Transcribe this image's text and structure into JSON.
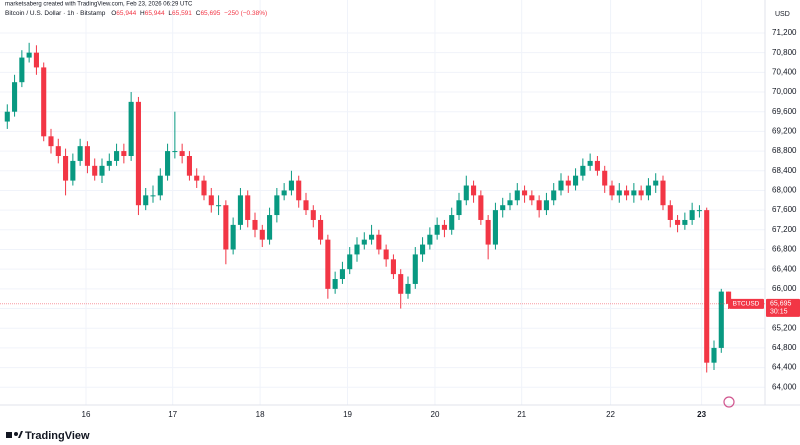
{
  "header": {
    "credit": "marketsaberg created with TradingView.com, Feb 23, 2026 06:29 UTC",
    "symbol": "Bitcoin / U.S. Dollar · 1h · Bitstamp",
    "open_label": "O",
    "open": "65,944",
    "high_label": "H",
    "high": "65,944",
    "low_label": "L",
    "low": "65,591",
    "close_label": "C",
    "close": "65,695",
    "change": "−250 (−0.38%)"
  },
  "logo": "TradingView",
  "chart_data": {
    "type": "candlestick",
    "currency": "USD",
    "up_color": "#089981",
    "down_color": "#f23645",
    "grid": true,
    "xlim": [
      -1,
      104
    ],
    "xticks": [
      {
        "value": 10.8,
        "label": "16"
      },
      {
        "value": 22.7,
        "label": "17"
      },
      {
        "value": 34.7,
        "label": "18"
      },
      {
        "value": 46.7,
        "label": "19"
      },
      {
        "value": 58.7,
        "label": "20"
      },
      {
        "value": 70.6,
        "label": "21"
      },
      {
        "value": 82.8,
        "label": "22"
      },
      {
        "value": 95.3,
        "label": "23"
      }
    ],
    "ylim": [
      63640,
      71870
    ],
    "yticks": [
      {
        "value": 64000,
        "label": "64,000"
      },
      {
        "value": 64400,
        "label": "64,400"
      },
      {
        "value": 64800,
        "label": "64,800"
      },
      {
        "value": 65200,
        "label": "65,200"
      },
      {
        "value": 65600,
        "label": "65,600"
      },
      {
        "value": 66000,
        "label": "66,000"
      },
      {
        "value": 66400,
        "label": "66,400"
      },
      {
        "value": 66800,
        "label": "66,800"
      },
      {
        "value": 67200,
        "label": "67,200"
      },
      {
        "value": 67600,
        "label": "67,600"
      },
      {
        "value": 68000,
        "label": "68,000"
      },
      {
        "value": 68400,
        "label": "68,400"
      },
      {
        "value": 68800,
        "label": "68,800"
      },
      {
        "value": 69200,
        "label": "69,200"
      },
      {
        "value": 69600,
        "label": "69,600"
      },
      {
        "value": 70000,
        "label": "70,000"
      },
      {
        "value": 70400,
        "label": "70,400"
      },
      {
        "value": 70800,
        "label": "70,800"
      },
      {
        "value": 71200,
        "label": "71,200"
      }
    ],
    "last_price": {
      "symbol": "BTCUSD",
      "value": 65695,
      "label": "65,695",
      "countdown": "30:15"
    },
    "open": [
      69400,
      69600,
      70200,
      70700,
      70800,
      70500,
      69100,
      68900,
      68700,
      68200,
      68600,
      68900,
      68500,
      68300,
      68500,
      68600,
      68800,
      68700,
      69800,
      67700,
      67900,
      67900,
      68300,
      68800,
      68800,
      68700,
      68300,
      68200,
      67900,
      67700,
      67700,
      66800,
      67300,
      67900,
      67400,
      67200,
      67000,
      67500,
      67900,
      68000,
      68200,
      67800,
      67600,
      67400,
      67000,
      66000,
      66200,
      66400,
      66700,
      66900,
      67000,
      67100,
      66800,
      66600,
      66300,
      65900,
      66100,
      66700,
      66900,
      67100,
      67300,
      67200,
      67500,
      67800,
      68100,
      67900,
      67400,
      66900,
      67600,
      67700,
      67800,
      68000,
      67900,
      67800,
      67600,
      67800,
      68000,
      68200,
      68100,
      68300,
      68500,
      68600,
      68400,
      68100,
      67900,
      68000,
      67900,
      68000,
      67900,
      68100,
      68200,
      67700,
      67400,
      67300,
      67400,
      67600,
      67600,
      64500,
      64800,
      65944
    ],
    "high": [
      69750,
      70350,
      70850,
      71000,
      70950,
      70600,
      69250,
      69050,
      68850,
      68750,
      69050,
      69000,
      68650,
      68650,
      68750,
      68950,
      68950,
      70000,
      69900,
      68050,
      68100,
      68450,
      68950,
      69600,
      68950,
      68800,
      68450,
      68300,
      68050,
      67900,
      67800,
      67450,
      68050,
      68000,
      67550,
      67300,
      67650,
      68050,
      68150,
      68400,
      68300,
      67950,
      67700,
      67500,
      67100,
      66350,
      66550,
      66850,
      67050,
      67150,
      67300,
      67200,
      66900,
      66700,
      66400,
      66250,
      66850,
      67050,
      67250,
      67450,
      67400,
      67650,
      67950,
      68300,
      68200,
      68000,
      67500,
      67750,
      67850,
      67950,
      68150,
      68100,
      68000,
      67900,
      67950,
      68150,
      68350,
      68300,
      68450,
      68650,
      68750,
      68700,
      68500,
      68200,
      68150,
      68100,
      68150,
      68100,
      68250,
      68350,
      68300,
      67800,
      67500,
      67550,
      67750,
      67700,
      67650,
      64950,
      66000,
      65944
    ],
    "low": [
      69250,
      69500,
      70100,
      70600,
      70350,
      69000,
      68750,
      68550,
      67900,
      68100,
      68500,
      68350,
      68200,
      68150,
      68400,
      68500,
      68550,
      68600,
      67500,
      67600,
      67750,
      67800,
      68200,
      68650,
      68550,
      68200,
      68050,
      67800,
      67550,
      67500,
      66500,
      66700,
      67200,
      67250,
      67050,
      66850,
      66900,
      67350,
      67800,
      67900,
      67650,
      67500,
      67250,
      66900,
      65800,
      65900,
      66100,
      66300,
      66550,
      66800,
      66900,
      66700,
      66450,
      66200,
      65600,
      65800,
      66000,
      66550,
      66800,
      67000,
      67050,
      67100,
      67400,
      67700,
      67750,
      67300,
      66600,
      66800,
      67450,
      67600,
      67700,
      67750,
      67700,
      67450,
      67500,
      67700,
      67900,
      67950,
      68000,
      68200,
      68400,
      68300,
      67950,
      67800,
      67750,
      67800,
      67750,
      67800,
      67800,
      67950,
      67600,
      67250,
      67150,
      67200,
      67300,
      67450,
      64300,
      64350,
      64700,
      65591
    ],
    "close": [
      69600,
      70200,
      70700,
      70800,
      70500,
      69100,
      68900,
      68700,
      68200,
      68600,
      68900,
      68500,
      68300,
      68500,
      68600,
      68800,
      68700,
      69800,
      67700,
      67900,
      67900,
      68300,
      68800,
      68800,
      68700,
      68300,
      68200,
      67900,
      67700,
      67700,
      66800,
      67300,
      67900,
      67400,
      67200,
      67000,
      67500,
      67900,
      68000,
      68200,
      67800,
      67600,
      67400,
      67000,
      66000,
      66200,
      66400,
      66700,
      66900,
      67000,
      67100,
      66800,
      66600,
      66300,
      65900,
      66100,
      66700,
      66900,
      67100,
      67300,
      67200,
      67500,
      67800,
      68100,
      67900,
      67400,
      66900,
      67600,
      67700,
      67800,
      68000,
      67900,
      67800,
      67600,
      67800,
      68000,
      68200,
      68100,
      68300,
      68500,
      68600,
      68400,
      68100,
      67900,
      68000,
      67900,
      68000,
      67900,
      68100,
      68200,
      67700,
      67400,
      67300,
      67400,
      67600,
      67600,
      64500,
      64800,
      65944,
      65695
    ]
  }
}
